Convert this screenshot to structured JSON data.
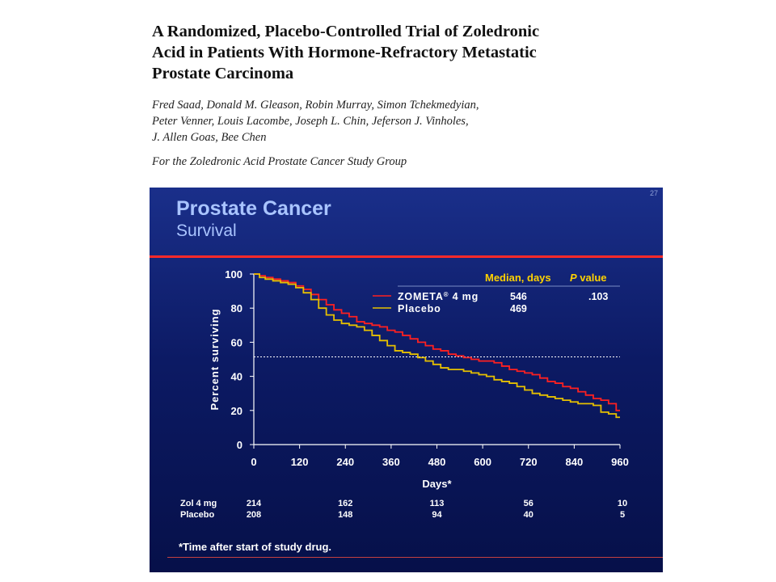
{
  "paper": {
    "title_lines": [
      "A Randomized, Placebo-Controlled Trial of Zoledronic",
      "Acid in Patients With Hormone-Refractory Metastatic",
      "Prostate Carcinoma"
    ],
    "author_lines": [
      "Fred Saad, Donald M. Gleason, Robin Murray, Simon Tchekmedyian,",
      "Peter Venner, Louis Lacombe, Joseph L. Chin, Jeferson J. Vinholes,",
      "J. Allen Goas, Bee Chen"
    ],
    "group": "For the Zoledronic Acid Prostate Cancer Study Group"
  },
  "slide": {
    "number": "27",
    "title": "Prostate Cancer",
    "subtitle": "Survival",
    "footnote": "*Time after start of study drug."
  },
  "colors": {
    "zometa": "#ff2020",
    "placebo": "#e6c000",
    "text": "#ffffff",
    "accent_text": "#ffd200",
    "axis": "#ffffff"
  },
  "chart_data": {
    "type": "line",
    "title": "",
    "xlabel": "Days*",
    "ylabel": "Percent surviving",
    "xlim": [
      0,
      960
    ],
    "ylim": [
      0,
      100
    ],
    "xticks": [
      0,
      120,
      240,
      360,
      480,
      600,
      720,
      840,
      960
    ],
    "yticks": [
      0,
      20,
      40,
      60,
      80,
      100
    ],
    "median_reference_y": 50,
    "legend": {
      "placement": "top-right",
      "header_median": "Median, days",
      "header_p": "value",
      "header_p_italic": "P",
      "entries": [
        {
          "label": "ZOMETA",
          "superscript": "®",
          "suffix": " 4 mg",
          "median": "546",
          "p": ".103"
        },
        {
          "label": "Placebo",
          "superscript": "",
          "suffix": "",
          "median": "469",
          "p": ""
        }
      ]
    },
    "series": [
      {
        "name": "ZOMETA® 4 mg",
        "x": [
          0,
          15,
          30,
          50,
          70,
          90,
          110,
          130,
          150,
          170,
          190,
          210,
          230,
          250,
          270,
          290,
          310,
          330,
          350,
          370,
          390,
          410,
          430,
          450,
          470,
          490,
          510,
          530,
          550,
          570,
          590,
          610,
          630,
          650,
          670,
          690,
          710,
          730,
          750,
          770,
          790,
          810,
          830,
          850,
          870,
          890,
          910,
          930,
          950,
          960
        ],
        "y": [
          100,
          99,
          98,
          97,
          96,
          95,
          93,
          91,
          88,
          85,
          82,
          79,
          77,
          75,
          72,
          71,
          70,
          69,
          67,
          66,
          64,
          62,
          60,
          58,
          56,
          55,
          53,
          52,
          51,
          50,
          49,
          49,
          48,
          46,
          44,
          43,
          42,
          41,
          39,
          37,
          36,
          34,
          33,
          31,
          29,
          27,
          26,
          24,
          20,
          20
        ]
      },
      {
        "name": "Placebo",
        "x": [
          0,
          15,
          30,
          50,
          70,
          90,
          110,
          130,
          150,
          170,
          190,
          210,
          230,
          250,
          270,
          290,
          310,
          330,
          350,
          370,
          390,
          410,
          430,
          450,
          470,
          490,
          510,
          530,
          550,
          570,
          590,
          610,
          630,
          650,
          670,
          690,
          710,
          730,
          750,
          770,
          790,
          810,
          830,
          850,
          870,
          890,
          910,
          930,
          950,
          960
        ],
        "y": [
          100,
          98,
          97,
          96,
          95,
          94,
          92,
          89,
          85,
          80,
          76,
          73,
          71,
          70,
          69,
          67,
          64,
          61,
          58,
          55,
          54,
          53,
          51,
          49,
          47,
          45,
          44,
          44,
          43,
          42,
          41,
          40,
          38,
          37,
          36,
          34,
          32,
          30,
          29,
          28,
          27,
          26,
          25,
          24,
          24,
          23,
          19,
          18,
          16,
          16
        ]
      }
    ]
  },
  "at_risk": {
    "rows": [
      {
        "label": "Zol 4 mg",
        "values": [
          "214",
          "162",
          "113",
          "56",
          "10"
        ]
      },
      {
        "label": "Placebo",
        "values": [
          "208",
          "148",
          "94",
          "40",
          "5"
        ]
      }
    ],
    "days": [
      0,
      240,
      480,
      720,
      960
    ]
  }
}
